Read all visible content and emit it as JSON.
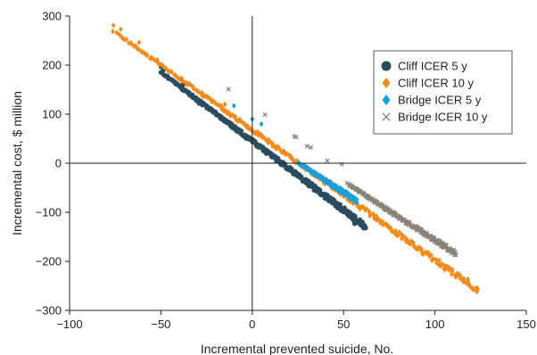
{
  "chart_data": {
    "type": "scatter",
    "xlabel": "Incremental prevented suicide, No.",
    "ylabel": "Incremental cost, $ million",
    "xlim": [
      -100,
      150
    ],
    "ylim": [
      -300,
      300
    ],
    "xticks": [
      -100,
      -50,
      0,
      50,
      100,
      150
    ],
    "yticks": [
      -300,
      -200,
      -100,
      0,
      100,
      200,
      300
    ],
    "reference_lines": {
      "x": 0,
      "y": 0
    },
    "grid": false,
    "legend_position": "top-right",
    "series": [
      {
        "name": "Cliff ICER 5 y",
        "marker": "circle",
        "color": "#2b4c5e",
        "band": {
          "x_start": -50,
          "x_end": 62,
          "intercept": 45,
          "slope": -2.8,
          "jitter": 6,
          "count": 320
        },
        "outliers": [
          [
            -50,
            197
          ],
          [
            -49,
            188
          ],
          [
            -38,
            160
          ],
          [
            -29,
            122
          ],
          [
            61,
            -132
          ],
          [
            56,
            -123
          ]
        ]
      },
      {
        "name": "Cliff ICER 10 y",
        "marker": "diamond",
        "color": "#f08c1e",
        "band": {
          "x_start": -76,
          "x_end": 123,
          "intercept": 68,
          "slope": -2.65,
          "jitter": 6,
          "count": 360
        },
        "outliers": [
          [
            -76,
            281
          ],
          [
            -72,
            273
          ],
          [
            -62,
            246
          ],
          [
            -52,
            211
          ],
          [
            118,
            -236
          ],
          [
            123,
            -262
          ],
          [
            -15,
            120
          ]
        ]
      },
      {
        "name": "Bridge ICER 5 y",
        "marker": "diamond",
        "color": "#1a9fd9",
        "band": {
          "x_start": 25,
          "x_end": 57,
          "intercept": 62,
          "slope": -2.42,
          "jitter": 5,
          "count": 160
        },
        "outliers": [
          [
            -10,
            117
          ],
          [
            0,
            90
          ],
          [
            5,
            80
          ]
        ]
      },
      {
        "name": "Bridge ICER 10 y",
        "marker": "cross",
        "color": "#8a8178",
        "band": {
          "x_start": 52,
          "x_end": 111,
          "intercept": 83,
          "slope": -2.4,
          "jitter": 5,
          "count": 260
        },
        "outliers": [
          [
            -13,
            151
          ],
          [
            7,
            99
          ],
          [
            23,
            55
          ],
          [
            24,
            53
          ],
          [
            30,
            35
          ],
          [
            32,
            32
          ],
          [
            41,
            5
          ],
          [
            49,
            -2
          ]
        ]
      }
    ]
  }
}
